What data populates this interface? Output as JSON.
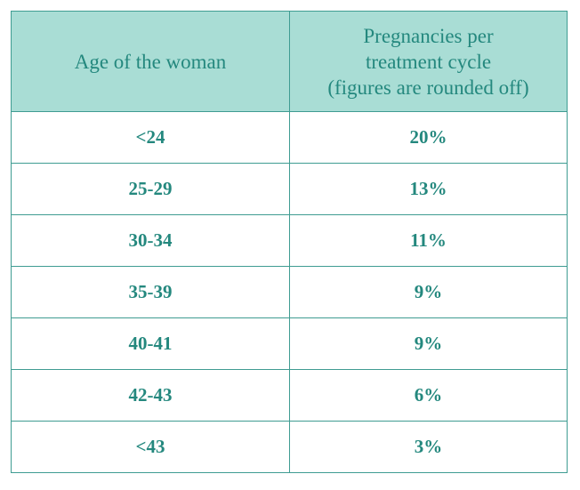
{
  "table": {
    "columns": [
      "Age of the woman",
      [
        "Pregnancies per",
        "treatment cycle",
        "(figures are rounded off)"
      ]
    ],
    "rows": [
      [
        "<24",
        "20%"
      ],
      [
        "25-29",
        "13%"
      ],
      [
        "30-34",
        "11%"
      ],
      [
        "35-39",
        "9%"
      ],
      [
        "40-41",
        "9%"
      ],
      [
        "42-43",
        "6%"
      ],
      [
        "<43",
        "3%"
      ]
    ]
  }
}
